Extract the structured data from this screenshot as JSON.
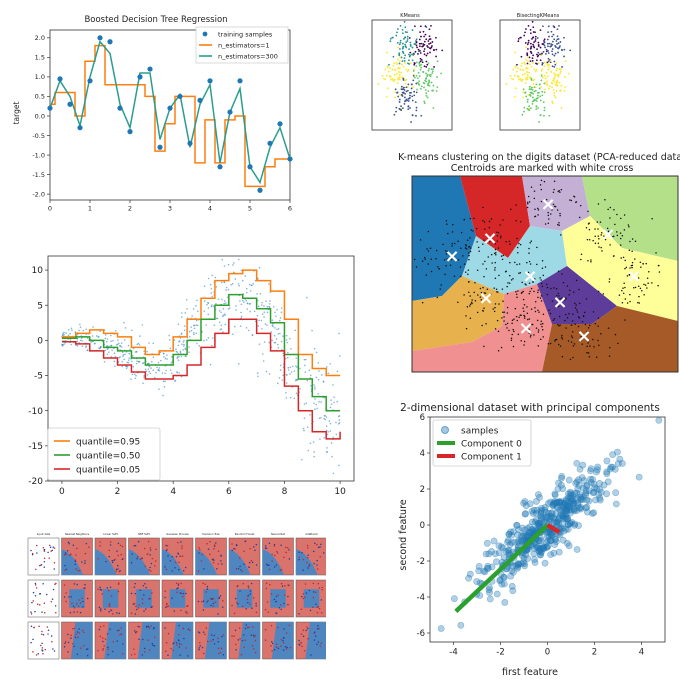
{
  "colors": {
    "blue": "#1f77b4",
    "orange": "#ff7f0e",
    "green": "#2ca02c",
    "teal": "#2a9d8f",
    "red": "#d62728"
  },
  "chart_data": [
    {
      "id": "boosted",
      "type": "line",
      "title": "Boosted Decision Tree Regression",
      "xlabel": "",
      "ylabel": "target",
      "xlim": [
        0,
        6
      ],
      "ylim": [
        -2.0,
        2.0
      ],
      "xticks": [
        0,
        1,
        2,
        3,
        4,
        5,
        6
      ],
      "yticks": [
        2.0,
        1.5,
        1.0,
        0.5,
        0.0,
        -0.5,
        -1.0,
        -1.5,
        -2.0
      ],
      "ytick_labels": [
        "2.0",
        "1.5",
        "1.0",
        "0.5",
        "0.0",
        "-0.5",
        "-1.0",
        "-1.5",
        "-2.0"
      ],
      "legend": [
        "training samples",
        "n_estimators=1",
        "n_estimators=300"
      ],
      "legend_position": "top-right",
      "x": [
        0.0,
        0.25,
        0.5,
        0.75,
        1.0,
        1.25,
        1.5,
        1.75,
        2.0,
        2.25,
        2.5,
        2.75,
        3.0,
        3.25,
        3.5,
        3.75,
        4.0,
        4.25,
        4.5,
        4.75,
        5.0,
        5.25,
        5.5,
        5.75,
        6.0
      ],
      "series": [
        {
          "name": "training samples",
          "style": "scatter",
          "values": [
            0.2,
            0.95,
            0.3,
            -0.3,
            0.9,
            2.0,
            1.9,
            0.2,
            -0.4,
            1.0,
            1.2,
            -0.8,
            0.2,
            0.5,
            -0.7,
            0.4,
            0.9,
            -1.3,
            0.1,
            0.9,
            -1.3,
            -1.9,
            -0.7,
            -0.2,
            -1.1
          ]
        },
        {
          "name": "n_estimators=1",
          "style": "step",
          "values": [
            0.3,
            0.6,
            0.6,
            0.0,
            1.4,
            1.8,
            0.8,
            0.8,
            0.8,
            0.8,
            0.5,
            -0.9,
            -0.2,
            0.5,
            0.5,
            -1.2,
            -0.1,
            -1.2,
            -0.1,
            0.0,
            -1.8,
            -1.8,
            -1.3,
            -1.1,
            -1.1
          ]
        },
        {
          "name": "n_estimators=300",
          "style": "line",
          "values": [
            0.2,
            0.9,
            0.5,
            -0.25,
            1.0,
            1.9,
            1.6,
            0.3,
            -0.3,
            1.1,
            1.1,
            -0.6,
            0.2,
            0.55,
            -0.8,
            0.3,
            0.8,
            -1.2,
            0.1,
            0.7,
            -1.3,
            -1.7,
            -0.8,
            -0.3,
            -1.1
          ]
        }
      ]
    },
    {
      "id": "kmeans-compare",
      "type": "scatter",
      "subplots": [
        {
          "title": "KMeans",
          "xlim": [
            -2,
            10
          ],
          "ylim": [
            -2,
            10
          ]
        },
        {
          "title": "BisectingKMeans",
          "xlim": [
            -2,
            10
          ],
          "ylim": [
            -2,
            10
          ]
        }
      ],
      "cluster_colors": [
        "#440154",
        "#3b528b",
        "#21918c",
        "#5ec962",
        "#fde725"
      ]
    },
    {
      "id": "digits",
      "type": "scatter",
      "title": "K-means clustering on the digits dataset (PCA-reduced data)",
      "subtitle": "Centroids are marked with white cross",
      "region_colors": [
        "#1f77b4",
        "#d62728",
        "#c5b0d5",
        "#b5e08a",
        "#9edae5",
        "#ffff99",
        "#e7b24d",
        "#f09090",
        "#5e3c99",
        "#a55a28"
      ],
      "centroid_marker": "×"
    },
    {
      "id": "quantile",
      "type": "line",
      "xlim": [
        -0.5,
        10.5
      ],
      "ylim": [
        -20,
        12
      ],
      "xticks": [
        0,
        2,
        4,
        6,
        8,
        10
      ],
      "yticks": [
        10,
        5,
        0,
        -5,
        -10,
        -15,
        -20
      ],
      "legend": [
        "quantile=0.95",
        "quantile=0.50",
        "quantile=0.05"
      ],
      "legend_position": "lower-left",
      "x": [
        0,
        0.5,
        1,
        1.5,
        2,
        2.5,
        3,
        3.5,
        4,
        4.5,
        5,
        5.5,
        6,
        6.5,
        7,
        7.5,
        8,
        8.5,
        9,
        9.5,
        10
      ],
      "series": [
        {
          "name": "quantile=0.95",
          "values": [
            0.5,
            1.0,
            1.5,
            1.0,
            0.5,
            -1.0,
            -2.0,
            -1.5,
            0.5,
            3.0,
            6.0,
            8.5,
            9.5,
            10.0,
            8.5,
            7.0,
            3.0,
            -2.0,
            -4.0,
            -5.0,
            -5.0
          ]
        },
        {
          "name": "quantile=0.50",
          "values": [
            0.3,
            0.5,
            0.0,
            -1.0,
            -1.5,
            -2.5,
            -3.5,
            -3.5,
            -2.0,
            0.0,
            3.0,
            5.0,
            6.5,
            6.0,
            4.5,
            2.5,
            -2.0,
            -5.5,
            -8.0,
            -10.0,
            -10.0
          ]
        },
        {
          "name": "quantile=0.05",
          "values": [
            -0.2,
            -0.5,
            -1.5,
            -2.5,
            -3.5,
            -4.5,
            -5.5,
            -5.5,
            -5.0,
            -3.5,
            -1.0,
            1.0,
            3.0,
            3.0,
            1.0,
            -1.5,
            -6.5,
            -10.0,
            -13.0,
            -14.0,
            -13.0
          ]
        }
      ]
    },
    {
      "id": "pca",
      "type": "scatter",
      "title": "2-dimensional dataset with principal components",
      "xlabel": "first feature",
      "ylabel": "second feature",
      "xlim": [
        -5,
        5
      ],
      "ylim": [
        -6.5,
        6
      ],
      "xticks": [
        -4,
        -2,
        0,
        2,
        4
      ],
      "yticks": [
        6,
        4,
        2,
        0,
        -2,
        -4,
        -6
      ],
      "legend": [
        "samples",
        "Component 0",
        "Component 1"
      ],
      "legend_position": "top-left",
      "components": [
        {
          "name": "Component 0",
          "from": [
            0,
            0
          ],
          "to": [
            -3.9,
            -4.8
          ]
        },
        {
          "name": "Component 1",
          "from": [
            0,
            0
          ],
          "to": [
            0.5,
            -0.4
          ]
        }
      ]
    },
    {
      "id": "classifier-grid",
      "type": "heatmap",
      "rows": 3,
      "cols": 9,
      "column_titles": [
        "Input data",
        "Nearest Neighbors",
        "Linear SVM",
        "RBF SVM",
        "Gaussian Process",
        "Decision Tree",
        "Random Forest",
        "Neural Net",
        "AdaBoost"
      ]
    }
  ]
}
